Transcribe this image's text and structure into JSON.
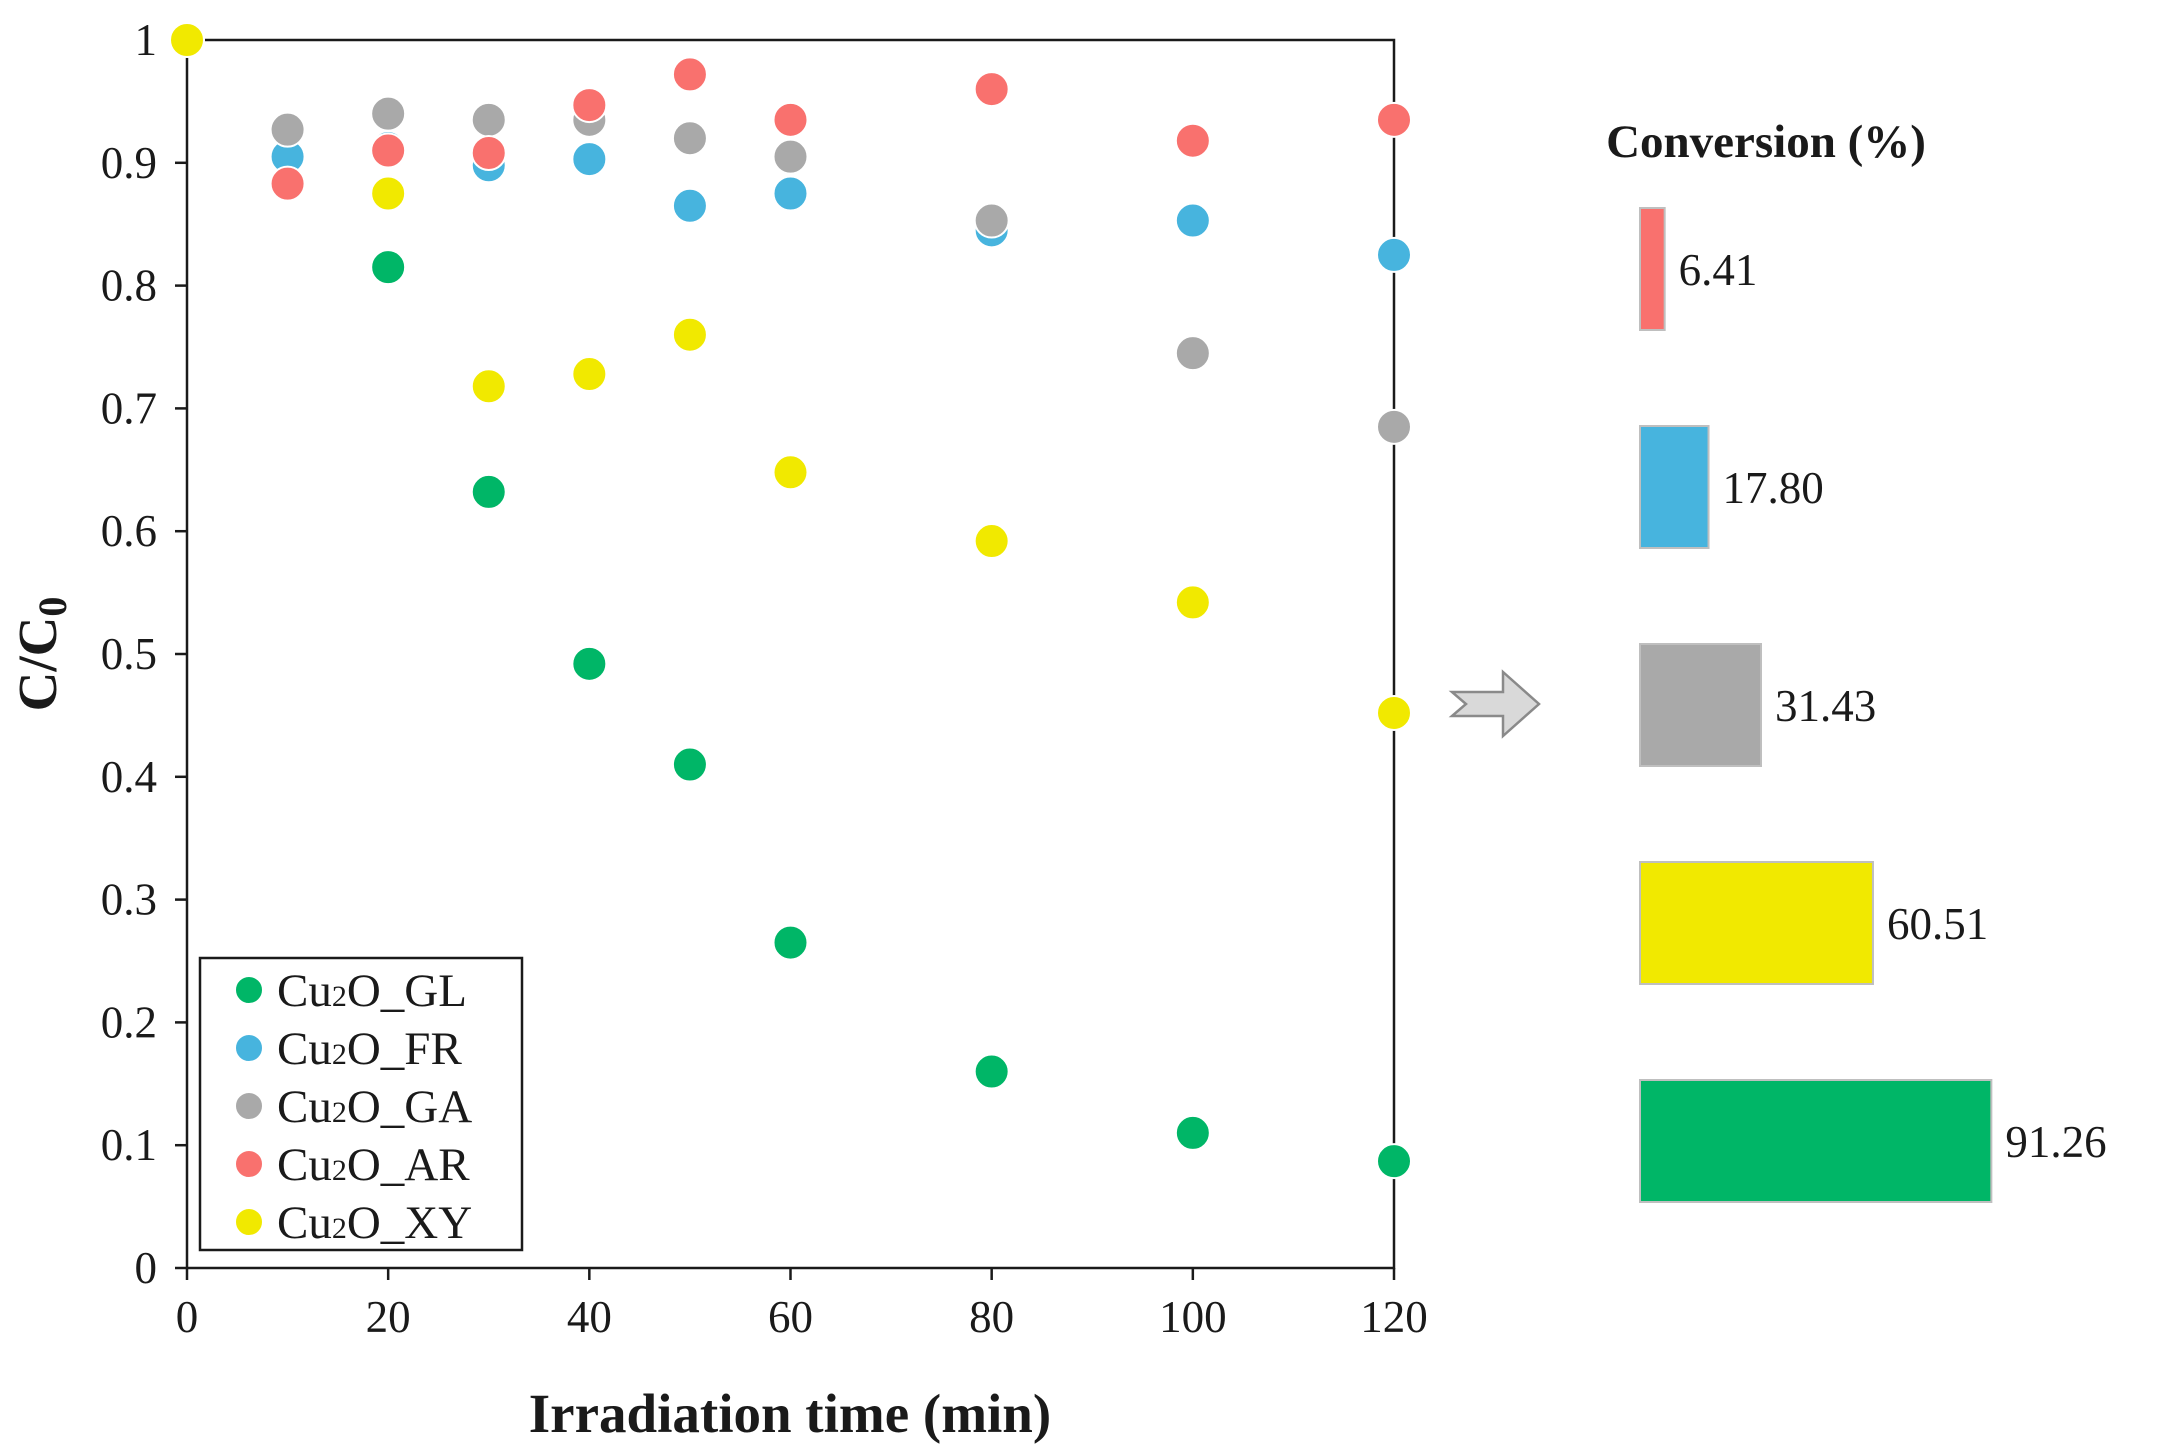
{
  "chart_data": [
    {
      "type": "scatter",
      "xlabel": "Irradiation time (min)",
      "ylabel": {
        "main": "C/C",
        "sub": "0"
      },
      "xlim": [
        0,
        120
      ],
      "ylim": [
        0,
        1
      ],
      "xticks": [
        "0",
        "20",
        "40",
        "60",
        "80",
        "100",
        "120"
      ],
      "xtick_values": [
        0,
        20,
        40,
        60,
        80,
        100,
        120
      ],
      "yticks": [
        "0",
        "0.1",
        "0.2",
        "0.3",
        "0.4",
        "0.5",
        "0.6",
        "0.7",
        "0.8",
        "0.9",
        "1"
      ],
      "ytick_values": [
        0,
        0.1,
        0.2,
        0.3,
        0.4,
        0.5,
        0.6,
        0.7,
        0.8,
        0.9,
        1
      ],
      "grid": false,
      "legend_position": "bottom-left",
      "series": [
        {
          "name": "Cu2O_GL",
          "label_main": "Cu",
          "label_sub": "2",
          "label_rest": "O_GL",
          "color": "#00B667",
          "x": [
            0,
            20,
            30,
            40,
            50,
            60,
            80,
            100,
            120
          ],
          "y": [
            1.0,
            0.815,
            0.632,
            0.492,
            0.41,
            0.265,
            0.16,
            0.11,
            0.087
          ]
        },
        {
          "name": "Cu2O_FR",
          "label_main": "Cu",
          "label_sub": "2",
          "label_rest": "O_FR",
          "color": "#47B4DE",
          "x": [
            10,
            20,
            30,
            40,
            50,
            60,
            80,
            100,
            120
          ],
          "y": [
            0.905,
            0.912,
            0.898,
            0.903,
            0.865,
            0.875,
            0.845,
            0.853,
            0.825
          ]
        },
        {
          "name": "Cu2O_GA",
          "label_main": "Cu",
          "label_sub": "2",
          "label_rest": "O_GA",
          "color": "#A9A9A9",
          "x": [
            10,
            20,
            30,
            40,
            50,
            60,
            80,
            100,
            120
          ],
          "y": [
            0.927,
            0.94,
            0.935,
            0.935,
            0.92,
            0.905,
            0.853,
            0.745,
            0.685
          ]
        },
        {
          "name": "Cu2O_AR",
          "label_main": "Cu",
          "label_sub": "2",
          "label_rest": "O_AR",
          "color": "#F9716E",
          "x": [
            10,
            20,
            30,
            40,
            50,
            60,
            80,
            100,
            120
          ],
          "y": [
            0.883,
            0.91,
            0.908,
            0.947,
            0.972,
            0.935,
            0.96,
            0.918,
            0.935
          ]
        },
        {
          "name": "Cu2O_XY",
          "label_main": "Cu",
          "label_sub": "2",
          "label_rest": "O_XY",
          "color": "#F1E900",
          "x": [
            0,
            20,
            30,
            40,
            50,
            60,
            80,
            100,
            120
          ],
          "y": [
            1.0,
            0.875,
            0.718,
            0.728,
            0.76,
            0.648,
            0.592,
            0.542,
            0.452
          ]
        }
      ]
    },
    {
      "type": "bar",
      "orientation": "horizontal",
      "title": "Conversion (%)",
      "categories": [
        "Cu2O_AR",
        "Cu2O_FR",
        "Cu2O_GA",
        "Cu2O_XY",
        "Cu2O_GL"
      ],
      "values": [
        6.41,
        17.8,
        31.43,
        60.51,
        91.26
      ],
      "labels": [
        "6.41",
        "17.80",
        "31.43",
        "60.51",
        "91.26"
      ],
      "colors": [
        "#F9716E",
        "#47B4DE",
        "#A9A9A9",
        "#F1E900",
        "#00B667"
      ],
      "xlim": [
        0,
        100
      ]
    }
  ]
}
